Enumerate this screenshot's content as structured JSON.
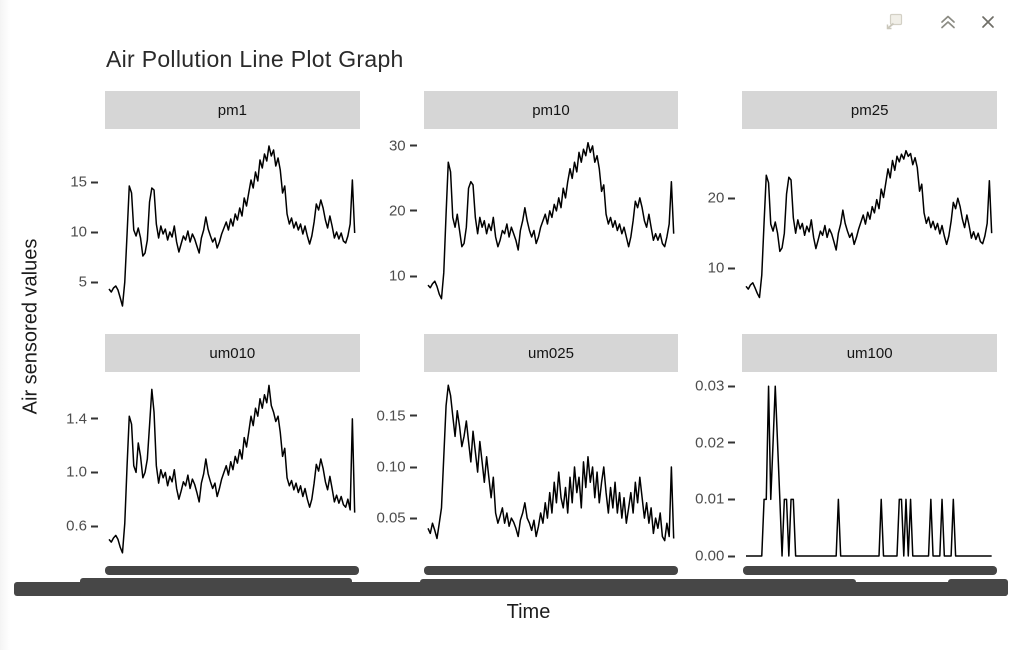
{
  "window": {
    "controls": [
      {
        "name": "open-in-new-window",
        "enabled": false
      },
      {
        "name": "collapse",
        "enabled": true
      },
      {
        "name": "close",
        "enabled": true
      }
    ]
  },
  "chart_data": {
    "type": "line",
    "title": "Air Pollution Line Plot Graph",
    "ylabel": "Air sensored values",
    "xlabel": "Time",
    "legend": "none",
    "grid": "off",
    "layout": "facet-wrap 2 rows x 3 cols, free y scales",
    "x_axis_note": "x tick labels are dense timestamps overlapping into solid dark bars",
    "colors": {
      "line": "#000000",
      "strip_fill": "#d6d6d6",
      "axis_text": "#4d4d4d",
      "x_label_bar": "#474747",
      "background": "#ffffff"
    },
    "facets": [
      {
        "name": "pm1",
        "ylim": [
          1.7,
          20.3
        ],
        "yticks": [
          {
            "v": 5,
            "label": "5"
          },
          {
            "v": 10,
            "label": "10"
          },
          {
            "v": 15,
            "label": "15"
          }
        ],
        "values": [
          4.3,
          4.0,
          4.4,
          4.6,
          4.2,
          3.4,
          2.6,
          5.0,
          9.8,
          14.6,
          13.9,
          10.2,
          9.6,
          10.4,
          9.4,
          7.6,
          7.9,
          9.2,
          13.0,
          14.4,
          14.2,
          10.8,
          9.4,
          10.6,
          9.8,
          10.3,
          9.2,
          10.0,
          9.5,
          10.6,
          9.0,
          8.0,
          8.8,
          9.6,
          9.2,
          10.1,
          9.0,
          9.8,
          9.3,
          8.6,
          7.9,
          9.4,
          10.2,
          11.5,
          10.3,
          9.6,
          9.0,
          9.4,
          8.4,
          9.0,
          9.8,
          10.4,
          11.0,
          10.2,
          11.3,
          10.6,
          11.8,
          11.2,
          12.4,
          11.6,
          13.4,
          12.6,
          13.9,
          15.2,
          14.4,
          16.0,
          15.1,
          17.2,
          16.4,
          17.8,
          17.1,
          18.6,
          17.6,
          18.2,
          16.6,
          17.4,
          16.2,
          13.9,
          14.6,
          11.8,
          10.8,
          11.4,
          10.4,
          11.0,
          10.2,
          10.8,
          9.8,
          10.6,
          9.6,
          8.8,
          9.6,
          11.0,
          12.8,
          12.2,
          13.2,
          12.4,
          11.2,
          10.4,
          11.6,
          10.6,
          9.4,
          10.0,
          9.3,
          9.9,
          9.1,
          8.9,
          9.6,
          10.8,
          15.2,
          9.9
        ]
      },
      {
        "name": "pm10",
        "ylim": [
          4.0,
          32.6
        ],
        "yticks": [
          {
            "v": 10,
            "label": "10"
          },
          {
            "v": 20,
            "label": "20"
          },
          {
            "v": 30,
            "label": "30"
          }
        ],
        "values": [
          8.6,
          8.2,
          8.8,
          9.2,
          8.4,
          7.2,
          6.5,
          10.5,
          19.5,
          27.5,
          26.0,
          19.0,
          17.5,
          19.5,
          17.0,
          14.5,
          15.0,
          17.5,
          23.5,
          24.5,
          24.0,
          19.0,
          16.5,
          19.0,
          17.5,
          18.5,
          16.5,
          18.0,
          17.0,
          19.0,
          16.0,
          14.5,
          15.5,
          17.0,
          16.5,
          18.0,
          16.0,
          17.5,
          16.5,
          15.5,
          14.0,
          17.0,
          18.5,
          20.5,
          18.5,
          17.0,
          16.0,
          17.0,
          15.0,
          16.0,
          17.5,
          18.5,
          19.5,
          18.0,
          20.0,
          19.0,
          21.0,
          20.0,
          22.0,
          20.5,
          23.5,
          22.0,
          24.5,
          26.5,
          25.0,
          27.5,
          26.0,
          29.0,
          27.5,
          29.5,
          28.5,
          30.5,
          29.0,
          30.0,
          27.5,
          28.5,
          26.5,
          23.0,
          24.0,
          19.5,
          18.0,
          19.0,
          17.5,
          18.5,
          17.0,
          18.0,
          16.5,
          17.5,
          16.0,
          14.5,
          16.0,
          18.5,
          21.5,
          20.5,
          22.0,
          20.5,
          18.5,
          17.5,
          19.5,
          17.5,
          15.5,
          16.5,
          15.5,
          16.5,
          15.0,
          14.5,
          16.0,
          18.0,
          24.5,
          16.5
        ]
      },
      {
        "name": "pm25",
        "ylim": [
          3.3,
          29.9
        ],
        "yticks": [
          {
            "v": 10,
            "label": "10"
          },
          {
            "v": 20,
            "label": "20"
          }
        ],
        "values": [
          7.4,
          7.0,
          7.6,
          7.9,
          7.2,
          6.4,
          5.8,
          9.0,
          16.5,
          23.3,
          22.2,
          16.3,
          15.3,
          16.6,
          15.0,
          12.4,
          12.9,
          15.0,
          20.6,
          23.0,
          22.6,
          17.2,
          15.0,
          16.9,
          15.6,
          16.4,
          14.7,
          16.0,
          15.2,
          16.9,
          14.4,
          12.8,
          14.0,
          15.3,
          14.7,
          16.1,
          14.4,
          15.6,
          14.9,
          13.8,
          12.6,
          15.0,
          16.3,
          18.3,
          16.4,
          15.3,
          14.4,
          15.0,
          13.4,
          14.4,
          15.6,
          16.6,
          17.6,
          16.3,
          18.0,
          17.0,
          18.8,
          17.9,
          19.8,
          18.5,
          21.3,
          20.1,
          22.1,
          24.2,
          22.9,
          25.4,
          24.0,
          26.0,
          25.2,
          26.3,
          25.6,
          26.8,
          26.0,
          26.4,
          24.8,
          25.8,
          24.4,
          21.0,
          22.0,
          17.9,
          16.4,
          17.3,
          15.8,
          16.7,
          15.5,
          16.4,
          14.9,
          16.1,
          14.6,
          13.4,
          14.6,
          16.7,
          19.4,
          18.5,
          20.0,
          18.8,
          17.0,
          15.8,
          17.6,
          16.1,
          14.3,
          15.2,
          14.1,
          15.0,
          13.8,
          13.5,
          14.6,
          16.4,
          22.5,
          15.0
        ]
      },
      {
        "name": "um010",
        "ylim": [
          0.346,
          1.75
        ],
        "yticks": [
          {
            "v": 0.6,
            "label": "0.6"
          },
          {
            "v": 1.0,
            "label": "1.0"
          },
          {
            "v": 1.4,
            "label": "1.4"
          }
        ],
        "values": [
          0.5,
          0.48,
          0.51,
          0.53,
          0.5,
          0.44,
          0.4,
          0.62,
          1.05,
          1.42,
          1.36,
          1.05,
          1.0,
          1.22,
          1.12,
          0.96,
          1.0,
          1.1,
          1.35,
          1.62,
          1.45,
          1.05,
          0.92,
          1.02,
          0.96,
          1.0,
          0.9,
          0.97,
          0.93,
          1.02,
          0.88,
          0.8,
          0.86,
          0.93,
          0.9,
          0.98,
          0.88,
          0.95,
          0.91,
          0.85,
          0.78,
          0.92,
          0.99,
          1.1,
          0.99,
          0.93,
          0.88,
          0.92,
          0.82,
          0.88,
          0.95,
          1.0,
          1.05,
          0.98,
          1.08,
          1.02,
          1.12,
          1.07,
          1.17,
          1.1,
          1.26,
          1.19,
          1.3,
          1.42,
          1.35,
          1.48,
          1.42,
          1.55,
          1.48,
          1.58,
          1.52,
          1.65,
          1.5,
          1.45,
          1.38,
          1.42,
          1.3,
          1.12,
          1.18,
          0.96,
          0.9,
          0.94,
          0.87,
          0.92,
          0.85,
          0.9,
          0.82,
          0.88,
          0.8,
          0.74,
          0.8,
          0.92,
          1.06,
          1.01,
          1.1,
          1.03,
          0.93,
          0.87,
          0.97,
          0.88,
          0.78,
          0.83,
          0.77,
          0.82,
          0.76,
          0.74,
          0.8,
          0.72,
          1.4,
          0.7
        ]
      },
      {
        "name": "um025",
        "ylim": [
          0.009,
          0.193
        ],
        "yticks": [
          {
            "v": 0.05,
            "label": "0.05"
          },
          {
            "v": 0.1,
            "label": "0.10"
          },
          {
            "v": 0.15,
            "label": "0.15"
          }
        ],
        "values": [
          0.04,
          0.035,
          0.045,
          0.038,
          0.03,
          0.045,
          0.06,
          0.11,
          0.16,
          0.18,
          0.17,
          0.15,
          0.13,
          0.155,
          0.14,
          0.12,
          0.13,
          0.145,
          0.125,
          0.105,
          0.135,
          0.115,
          0.095,
          0.125,
          0.105,
          0.085,
          0.11,
          0.09,
          0.07,
          0.09,
          0.055,
          0.045,
          0.052,
          0.06,
          0.045,
          0.055,
          0.042,
          0.05,
          0.046,
          0.04,
          0.032,
          0.048,
          0.055,
          0.065,
          0.05,
          0.045,
          0.038,
          0.048,
          0.032,
          0.042,
          0.055,
          0.045,
          0.065,
          0.05,
          0.075,
          0.055,
          0.085,
          0.065,
          0.095,
          0.07,
          0.06,
          0.08,
          0.055,
          0.09,
          0.065,
          0.1,
          0.075,
          0.09,
          0.06,
          0.105,
          0.08,
          0.11,
          0.085,
          0.1,
          0.07,
          0.095,
          0.065,
          0.085,
          0.1,
          0.075,
          0.055,
          0.08,
          0.06,
          0.085,
          0.055,
          0.075,
          0.05,
          0.07,
          0.045,
          0.06,
          0.075,
          0.055,
          0.085,
          0.065,
          0.09,
          0.07,
          0.05,
          0.065,
          0.045,
          0.06,
          0.035,
          0.05,
          0.04,
          0.055,
          0.032,
          0.028,
          0.045,
          0.032,
          0.1,
          0.03
        ]
      },
      {
        "name": "um100",
        "ylim": [
          -0.0007,
          0.0325
        ],
        "yticks": [
          {
            "v": 0.0,
            "label": "0.00"
          },
          {
            "v": 0.01,
            "label": "0.01"
          },
          {
            "v": 0.02,
            "label": "0.02"
          },
          {
            "v": 0.03,
            "label": "0.03"
          }
        ],
        "values": [
          0,
          0,
          0,
          0,
          0,
          0,
          0,
          0,
          0.01,
          0.01,
          0.03,
          0.01,
          0.02,
          0.03,
          0.02,
          0.01,
          0,
          0.01,
          0.01,
          0,
          0.01,
          0.01,
          0,
          0,
          0,
          0,
          0,
          0,
          0,
          0,
          0,
          0,
          0,
          0,
          0,
          0,
          0,
          0,
          0,
          0,
          0,
          0.01,
          0,
          0,
          0,
          0,
          0,
          0,
          0,
          0,
          0,
          0,
          0,
          0,
          0,
          0,
          0,
          0,
          0,
          0,
          0.01,
          0,
          0,
          0,
          0,
          0,
          0,
          0,
          0.01,
          0.01,
          0,
          0.01,
          0,
          0.01,
          0,
          0,
          0,
          0,
          0,
          0,
          0,
          0,
          0.01,
          0,
          0,
          0,
          0,
          0.01,
          0,
          0,
          0,
          0,
          0.01,
          0,
          0,
          0,
          0,
          0,
          0,
          0,
          0,
          0,
          0,
          0,
          0,
          0,
          0,
          0,
          0,
          0
        ]
      }
    ]
  }
}
